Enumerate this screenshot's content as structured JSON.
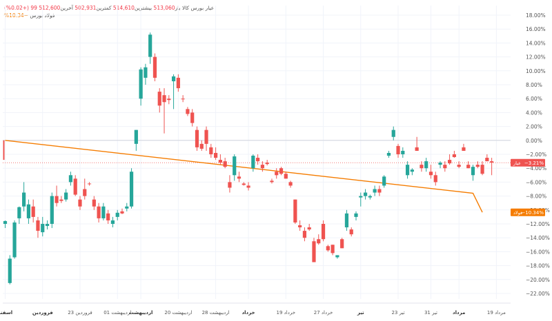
{
  "header": {
    "symbol": "عیار بورس کالا",
    "open_label": "باز",
    "open_value": "513,060",
    "high_label": "بیشترین",
    "high_value": "514,610",
    "low_label": "کمترین",
    "low_value": "502,931",
    "last_label": "آخرین",
    "last_value": "512,600",
    "change_value": "99 (+0.02%)",
    "compare_symbol": "فولاد بورس",
    "compare_value": "−10.34%"
  },
  "colors": {
    "up": "#26a69a",
    "down": "#ef5350",
    "compare_line": "#f57c00",
    "grid": "#f0f3fa",
    "axis_text": "#555555"
  },
  "chart_data": {
    "type": "candlestick",
    "y_unit": "%",
    "ylim": [
      -23,
      18.5
    ],
    "y_ticks": [
      "18.00%",
      "16.00%",
      "14.00%",
      "12.00%",
      "10.00%",
      "8.00%",
      "6.00%",
      "4.00%",
      "2.00%",
      "0.00%",
      "−2.00%",
      "−4.00%",
      "−6.00%",
      "−8.00%",
      "−10.00%",
      "−12.00%",
      "−14.00%",
      "−16.00%",
      "−18.00%",
      "−20.00%",
      "−22.00%"
    ],
    "x_labels": [
      "اسفند",
      "فروردین",
      "23 فروردین",
      "01 اردیبهشت",
      "اردیبهشت",
      "20 اردیبهشت",
      "28 اردیبهشت",
      "خرداد",
      "19 خرداد",
      "27 خرداد",
      "تیر",
      "23 تیر",
      "31 تیر",
      "مرداد",
      "19 مرداد"
    ],
    "x_label_index": [
      0,
      8,
      16,
      24,
      29,
      37,
      45,
      52,
      60,
      68,
      76,
      84,
      91,
      97,
      105
    ],
    "candles": [
      {
        "o": -12.0,
        "h": -11.5,
        "l": -12.6,
        "c": -11.6
      },
      {
        "o": -20.5,
        "h": -16.5,
        "l": -20.7,
        "c": -17.0
      },
      {
        "o": -16.8,
        "h": -11.5,
        "l": -17.0,
        "c": -11.8
      },
      {
        "o": -11.2,
        "h": -9.5,
        "l": -12.0,
        "c": -9.6
      },
      {
        "o": -9.5,
        "h": -6.0,
        "l": -10.2,
        "c": -7.5
      },
      {
        "o": -11.2,
        "h": -8.5,
        "l": -12.0,
        "c": -9.2
      },
      {
        "o": -9.5,
        "h": -8.5,
        "l": -11.8,
        "c": -11.0
      },
      {
        "o": -11.5,
        "h": -11.0,
        "l": -14.0,
        "c": -13.0
      },
      {
        "o": -13.2,
        "h": -11.0,
        "l": -13.8,
        "c": -12.0
      },
      {
        "o": -12.3,
        "h": -11.5,
        "l": -12.8,
        "c": -12.0
      },
      {
        "o": -12.0,
        "h": -7.5,
        "l": -12.6,
        "c": -8.0
      },
      {
        "o": -8.0,
        "h": -6.5,
        "l": -9.5,
        "c": -9.0
      },
      {
        "o": -8.5,
        "h": -8.0,
        "l": -9.0,
        "c": -8.7
      },
      {
        "o": -8.5,
        "h": -7.0,
        "l": -8.8,
        "c": -7.5
      },
      {
        "o": -6.0,
        "h": -4.5,
        "l": -6.5,
        "c": -5.0
      },
      {
        "o": -5.5,
        "h": -5.0,
        "l": -8.0,
        "c": -7.8
      },
      {
        "o": -8.5,
        "h": -8.0,
        "l": -10.0,
        "c": -9.5
      },
      {
        "o": -7.0,
        "h": -5.5,
        "l": -8.5,
        "c": -8.0
      },
      {
        "o": -6.2,
        "h": -6.0,
        "l": -6.5,
        "c": -6.3
      },
      {
        "o": -8.5,
        "h": -8.0,
        "l": -10.0,
        "c": -9.5
      },
      {
        "o": -9.5,
        "h": -9.0,
        "l": -11.8,
        "c": -11.2
      },
      {
        "o": -11.2,
        "h": -9.0,
        "l": -11.5,
        "c": -9.5
      },
      {
        "o": -10.5,
        "h": -10.0,
        "l": -12.0,
        "c": -11.5
      },
      {
        "o": -12.0,
        "h": -11.0,
        "l": -12.5,
        "c": -11.5
      },
      {
        "o": -11.0,
        "h": -10.0,
        "l": -11.5,
        "c": -10.4
      },
      {
        "o": -10.2,
        "h": -9.8,
        "l": -10.6,
        "c": -10.5
      },
      {
        "o": -9.8,
        "h": -9.0,
        "l": -10.2,
        "c": -9.5
      },
      {
        "o": -9.5,
        "h": -4.0,
        "l": -9.8,
        "c": -4.5
      },
      {
        "o": -0.5,
        "h": 1.5,
        "l": -1.5,
        "c": 1.5
      },
      {
        "o": 6.0,
        "h": 10.5,
        "l": 5.0,
        "c": 10.2
      },
      {
        "o": 9.0,
        "h": 11.0,
        "l": 8.0,
        "c": 10.5
      },
      {
        "o": 12.0,
        "h": 15.5,
        "l": 11.0,
        "c": 15.2
      },
      {
        "o": 12.0,
        "h": 12.5,
        "l": 8.5,
        "c": 9.0
      },
      {
        "o": 7.0,
        "h": 7.5,
        "l": 4.0,
        "c": 5.0
      },
      {
        "o": 6.5,
        "h": 7.5,
        "l": 1.0,
        "c": 5.5
      },
      {
        "o": 6.0,
        "h": 6.5,
        "l": 5.2,
        "c": 5.8
      },
      {
        "o": 8.5,
        "h": 9.5,
        "l": 4.5,
        "c": 9.2
      },
      {
        "o": 9.0,
        "h": 9.5,
        "l": 7.0,
        "c": 7.5
      },
      {
        "o": 6.0,
        "h": 6.5,
        "l": 5.5,
        "c": 5.9
      },
      {
        "o": 4.5,
        "h": 4.8,
        "l": 3.5,
        "c": 3.8
      },
      {
        "o": 4.0,
        "h": 4.5,
        "l": 2.0,
        "c": 2.5
      },
      {
        "o": 1.5,
        "h": 2.0,
        "l": -1.5,
        "c": -1.0
      },
      {
        "o": -0.5,
        "h": 0.0,
        "l": -1.5,
        "c": -1.2
      },
      {
        "o": 1.5,
        "h": 2.0,
        "l": -1.5,
        "c": -0.5
      },
      {
        "o": -1.0,
        "h": -0.5,
        "l": -2.5,
        "c": -2.0
      },
      {
        "o": -1.8,
        "h": -1.0,
        "l": -2.8,
        "c": -2.5
      },
      {
        "o": -2.8,
        "h": -2.0,
        "l": -3.5,
        "c": -3.2
      },
      {
        "o": -3.0,
        "h": -2.5,
        "l": -4.0,
        "c": -3.8
      },
      {
        "o": -6.0,
        "h": -5.0,
        "l": -7.5,
        "c": -6.8
      },
      {
        "o": -5.0,
        "h": -2.0,
        "l": -5.8,
        "c": -2.3
      },
      {
        "o": -5.2,
        "h": -4.5,
        "l": -6.0,
        "c": -5.5
      },
      {
        "o": -6.2,
        "h": -6.0,
        "l": -6.5,
        "c": -6.4
      },
      {
        "o": -6.5,
        "h": -6.0,
        "l": -7.2,
        "c": -6.8
      },
      {
        "o": -4.0,
        "h": -2.0,
        "l": -4.5,
        "c": -2.2
      },
      {
        "o": -2.5,
        "h": -2.0,
        "l": -3.5,
        "c": -3.0
      },
      {
        "o": -3.5,
        "h": -3.0,
        "l": -4.5,
        "c": -4.0
      },
      {
        "o": -3.2,
        "h": -2.8,
        "l": -3.6,
        "c": -3.4
      },
      {
        "o": -5.8,
        "h": -5.5,
        "l": -6.2,
        "c": -6.0
      },
      {
        "o": -4.5,
        "h": -4.0,
        "l": -5.5,
        "c": -5.0
      },
      {
        "o": -4.0,
        "h": -3.8,
        "l": -5.0,
        "c": -4.8
      },
      {
        "o": -4.8,
        "h": -4.5,
        "l": -5.5,
        "c": -5.5
      },
      {
        "o": -6.0,
        "h": -5.8,
        "l": -6.8,
        "c": -6.5
      },
      {
        "o": -8.5,
        "h": -8.5,
        "l": -12.0,
        "c": -11.8
      },
      {
        "o": -12.2,
        "h": -11.5,
        "l": -13.0,
        "c": -12.5
      },
      {
        "o": -13.0,
        "h": -12.5,
        "l": -14.5,
        "c": -14.0
      },
      {
        "o": -12.5,
        "h": -12.0,
        "l": -13.0,
        "c": -12.8
      },
      {
        "o": -14.5,
        "h": -14.0,
        "l": -17.5,
        "c": -17.5
      },
      {
        "o": -14.2,
        "h": -13.5,
        "l": -15.0,
        "c": -14.8
      },
      {
        "o": -12.0,
        "h": -11.5,
        "l": -14.5,
        "c": -14.2
      },
      {
        "o": -15.2,
        "h": -15.0,
        "l": -16.0,
        "c": -15.8
      },
      {
        "o": -15.0,
        "h": -15.0,
        "l": -16.5,
        "c": -16.2
      },
      {
        "o": -16.8,
        "h": -16.5,
        "l": -17.0,
        "c": -16.5
      },
      {
        "o": -14.2,
        "h": -14.0,
        "l": -15.5,
        "c": -15.5
      },
      {
        "o": -12.5,
        "h": -10.0,
        "l": -13.0,
        "c": -10.5
      },
      {
        "o": -12.8,
        "h": -12.5,
        "l": -13.8,
        "c": -13.5
      },
      {
        "o": -11.0,
        "h": -10.2,
        "l": -11.5,
        "c": -10.5
      },
      {
        "o": -8.2,
        "h": -7.5,
        "l": -9.5,
        "c": -8.0
      },
      {
        "o": -8.0,
        "h": -7.0,
        "l": -8.5,
        "c": -7.5
      },
      {
        "o": -8.2,
        "h": -7.8,
        "l": -8.5,
        "c": -8.0
      },
      {
        "o": -7.5,
        "h": -6.5,
        "l": -8.0,
        "c": -7.0
      },
      {
        "o": -7.0,
        "h": -6.5,
        "l": -8.0,
        "c": -7.5
      },
      {
        "o": -6.5,
        "h": -5.0,
        "l": -6.8,
        "c": -5.2
      },
      {
        "o": -2.2,
        "h": -1.5,
        "l": -2.5,
        "c": -1.8
      },
      {
        "o": 0.5,
        "h": 2.0,
        "l": 0.0,
        "c": 1.5
      },
      {
        "o": -0.8,
        "h": -0.5,
        "l": -2.5,
        "c": -2.0
      },
      {
        "o": -2.0,
        "h": -1.0,
        "l": -2.5,
        "c": -1.5
      },
      {
        "o": -5.0,
        "h": -3.0,
        "l": -5.5,
        "c": -3.5
      },
      {
        "o": -4.5,
        "h": -4.0,
        "l": -5.0,
        "c": -4.2
      },
      {
        "o": -1.0,
        "h": 0.5,
        "l": -1.5,
        "c": -1.5
      },
      {
        "o": -3.5,
        "h": -3.0,
        "l": -4.5,
        "c": -4.0
      },
      {
        "o": -4.0,
        "h": -2.5,
        "l": -4.5,
        "c": -3.0
      },
      {
        "o": -4.5,
        "h": -3.5,
        "l": -5.5,
        "c": -5.0
      },
      {
        "o": -5.0,
        "h": -4.5,
        "l": -6.5,
        "c": -6.0
      },
      {
        "o": -3.5,
        "h": -3.0,
        "l": -4.0,
        "c": -3.2
      },
      {
        "o": -3.5,
        "h": -3.0,
        "l": -4.5,
        "c": -4.0
      },
      {
        "o": -2.8,
        "h": -2.0,
        "l": -3.5,
        "c": -3.3
      },
      {
        "o": -2.0,
        "h": -1.5,
        "l": -2.5,
        "c": -2.4
      },
      {
        "o": -3.5,
        "h": -3.0,
        "l": -4.0,
        "c": -3.8
      },
      {
        "o": -1.0,
        "h": -0.5,
        "l": -1.5,
        "c": -1.5
      },
      {
        "o": -3.5,
        "h": -3.0,
        "l": -4.0,
        "c": -4.0
      },
      {
        "o": -5.0,
        "h": -3.5,
        "l": -5.8,
        "c": -3.8
      },
      {
        "o": -3.5,
        "h": -3.0,
        "l": -4.0,
        "c": -3.8
      },
      {
        "o": -3.5,
        "h": -3.0,
        "l": -5.0,
        "c": -4.8
      },
      {
        "o": -2.5,
        "h": -2.0,
        "l": -3.0,
        "c": -3.0
      },
      {
        "o": -3.0,
        "h": -2.5,
        "l": -5.0,
        "c": -3.2
      }
    ],
    "compare_series": {
      "values_by_index": [
        [
          0,
          0.0
        ],
        [
          100,
          -7.6
        ],
        [
          102,
          -10.34
        ]
      ]
    },
    "reference_lines": [
      {
        "value": -3.21,
        "style": "dotted",
        "color": "#ef5350"
      }
    ],
    "badges": [
      {
        "label": "عیار",
        "value": "−3.21%",
        "color": "#ef5350",
        "at": -3.21
      },
      {
        "label": "فولاد",
        "value": "−10.34%",
        "color": "#f57c00",
        "at": -10.34
      }
    ],
    "extra_mark": {
      "index": 0,
      "from": 0.0,
      "to": -2.8,
      "color": "#ef5350"
    }
  }
}
